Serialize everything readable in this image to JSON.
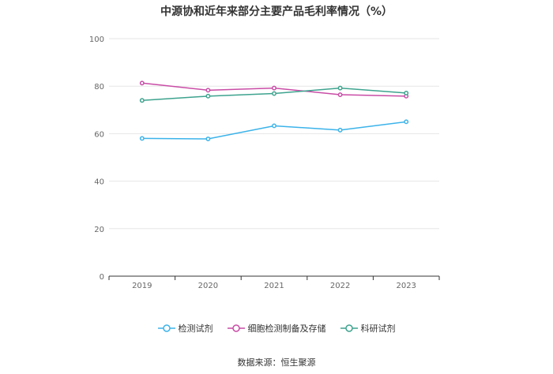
{
  "title": "中源协和近年来部分主要产品毛利率情况（%）",
  "source": "数据来源：恒生聚源",
  "chart_data": {
    "type": "line",
    "categories": [
      "2019",
      "2020",
      "2021",
      "2022",
      "2023"
    ],
    "ylim": [
      0,
      100
    ],
    "yticks": [
      0,
      20,
      40,
      60,
      80,
      100
    ],
    "grid": true,
    "legend_position": "bottom",
    "series": [
      {
        "name": "检测试剂",
        "color": "#3BB3EA",
        "values": [
          58.0,
          57.8,
          63.3,
          61.5,
          65.0
        ]
      },
      {
        "name": "细胞检测制备及存储",
        "color": "#C94CA6",
        "values": [
          81.3,
          78.3,
          79.2,
          76.4,
          75.8
        ]
      },
      {
        "name": "科研试剂",
        "color": "#3DA38E",
        "values": [
          74.0,
          75.8,
          76.9,
          79.2,
          77.1
        ]
      }
    ]
  }
}
